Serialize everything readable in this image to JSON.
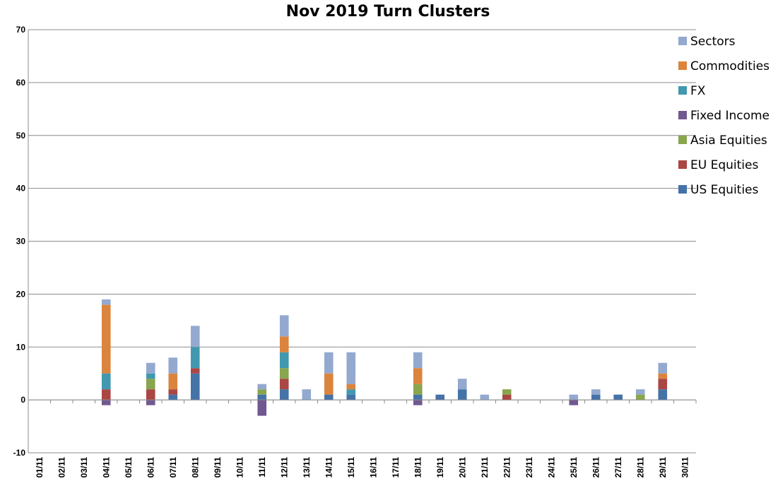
{
  "chart_data": {
    "type": "bar",
    "stacked": true,
    "title": "Nov 2019 Turn Clusters",
    "xlabel": "",
    "ylabel": "",
    "ylim": [
      -10,
      70
    ],
    "yticks": [
      -10,
      0,
      10,
      20,
      30,
      40,
      50,
      60,
      70
    ],
    "grid": true,
    "legend_position": "right",
    "categories": [
      "01/11",
      "02/11",
      "03/11",
      "04/11",
      "05/11",
      "06/11",
      "07/11",
      "08/11",
      "09/11",
      "10/11",
      "11/11",
      "12/11",
      "13/11",
      "14/11",
      "15/11",
      "16/11",
      "17/11",
      "18/11",
      "19/11",
      "20/11",
      "21/11",
      "22/11",
      "23/11",
      "24/11",
      "25/11",
      "26/11",
      "27/11",
      "28/11",
      "29/11",
      "30/11"
    ],
    "series": [
      {
        "name": "US Equities",
        "color": "#4572A7",
        "values": [
          0,
          0,
          0,
          0,
          0,
          0,
          1,
          5,
          0,
          0,
          1,
          2,
          0,
          1,
          1,
          0,
          0,
          1,
          1,
          2,
          0,
          0,
          0,
          0,
          0,
          1,
          1,
          0,
          2,
          0
        ]
      },
      {
        "name": "EU Equities",
        "color": "#AA4643",
        "values": [
          0,
          0,
          0,
          2,
          0,
          2,
          1,
          1,
          0,
          0,
          0,
          2,
          0,
          0,
          0,
          0,
          0,
          0,
          0,
          0,
          0,
          1,
          0,
          0,
          0,
          0,
          0,
          0,
          2,
          0
        ]
      },
      {
        "name": "Asia Equities",
        "color": "#89A54E",
        "values": [
          0,
          0,
          0,
          0,
          0,
          2,
          0,
          0,
          0,
          0,
          1,
          2,
          0,
          0,
          0,
          0,
          0,
          2,
          0,
          0,
          0,
          1,
          0,
          0,
          0,
          0,
          0,
          1,
          0,
          0
        ]
      },
      {
        "name": "Fixed Income",
        "color": "#71588F",
        "values": [
          0,
          0,
          0,
          -1,
          0,
          -1,
          0,
          0,
          0,
          0,
          -3,
          0,
          0,
          0,
          0,
          0,
          0,
          -1,
          0,
          0,
          0,
          0,
          0,
          0,
          -1,
          0,
          0,
          0,
          0,
          0
        ]
      },
      {
        "name": "FX",
        "color": "#4198AF",
        "values": [
          0,
          0,
          0,
          3,
          0,
          1,
          0,
          4,
          0,
          0,
          0,
          3,
          0,
          0,
          1,
          0,
          0,
          0,
          0,
          0,
          0,
          0,
          0,
          0,
          0,
          0,
          0,
          0,
          0,
          0
        ]
      },
      {
        "name": "Commodities",
        "color": "#DB843D",
        "values": [
          0,
          0,
          0,
          13,
          0,
          0,
          3,
          0,
          0,
          0,
          0,
          3,
          0,
          4,
          1,
          0,
          0,
          3,
          0,
          0,
          0,
          0,
          0,
          0,
          0,
          0,
          0,
          0,
          1,
          0
        ]
      },
      {
        "name": "Sectors",
        "color": "#93A9CF",
        "values": [
          0,
          0,
          0,
          1,
          0,
          2,
          3,
          4,
          0,
          0,
          1,
          4,
          2,
          4,
          6,
          0,
          0,
          3,
          0,
          2,
          1,
          0,
          0,
          0,
          1,
          1,
          0,
          1,
          2,
          0
        ]
      }
    ]
  }
}
